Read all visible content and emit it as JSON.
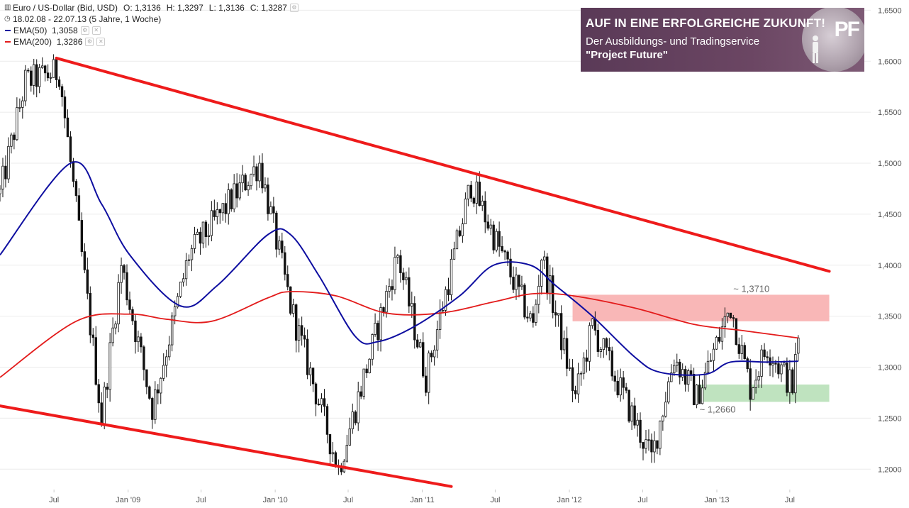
{
  "legend": {
    "instrument": "Euro / US-Dollar (Bid, USD)",
    "ohlc": {
      "open_label": "O:",
      "open": "1,3136",
      "high_label": "H:",
      "high": "1,3297",
      "low_label": "L:",
      "low": "1,3136",
      "close_label": "C:",
      "close": "1,3287"
    },
    "period": "18.02.08 - 22.07.13 (5 Jahre, 1 Woche)",
    "ema50": {
      "label": "EMA(50)",
      "value": "1,3058",
      "color": "#0d0da0"
    },
    "ema200": {
      "label": "EMA(200)",
      "value": "1,3286",
      "color": "#e31b1b"
    }
  },
  "banner": {
    "headline": "AUF IN EINE ERFOLGREICHE ZUKUNFT!",
    "line2": "Der Ausbildungs- und Tradingservice",
    "line3": "\"Project Future\"",
    "logo": "PF"
  },
  "chart_data": {
    "type": "candlestick",
    "title": "",
    "x_range": [
      "2008-02-18",
      "2013-07-22"
    ],
    "y_range": [
      1.18,
      1.66
    ],
    "y_ticks": [
      1.2,
      1.25,
      1.3,
      1.35,
      1.4,
      1.45,
      1.5,
      1.55,
      1.6,
      1.65
    ],
    "y_tick_labels": [
      "1,2000",
      "1,2500",
      "1,3000",
      "1,3500",
      "1,4000",
      "1,4500",
      "1,5000",
      "1,5500",
      "1,6000",
      "1,6500"
    ],
    "x_ticks": [
      {
        "date": "2008-07-01",
        "label": "Jul"
      },
      {
        "date": "2009-01-01",
        "label": "Jan '09"
      },
      {
        "date": "2009-07-01",
        "label": "Jul"
      },
      {
        "date": "2010-01-01",
        "label": "Jan '10"
      },
      {
        "date": "2010-07-01",
        "label": "Jul"
      },
      {
        "date": "2011-01-01",
        "label": "Jan '11"
      },
      {
        "date": "2011-07-01",
        "label": "Jul"
      },
      {
        "date": "2012-01-01",
        "label": "Jan '12"
      },
      {
        "date": "2012-07-01",
        "label": "Jul"
      },
      {
        "date": "2013-01-01",
        "label": "Jan '13"
      },
      {
        "date": "2013-07-01",
        "label": "Jul"
      }
    ],
    "price_path": [
      {
        "date": "2008-02-18",
        "value": 1.47
      },
      {
        "date": "2008-04-21",
        "value": 1.58
      },
      {
        "date": "2008-07-14",
        "value": 1.59
      },
      {
        "date": "2008-08-11",
        "value": 1.5
      },
      {
        "date": "2008-10-27",
        "value": 1.25
      },
      {
        "date": "2008-12-15",
        "value": 1.4
      },
      {
        "date": "2009-03-02",
        "value": 1.26
      },
      {
        "date": "2009-06-01",
        "value": 1.41
      },
      {
        "date": "2009-11-23",
        "value": 1.5
      },
      {
        "date": "2010-02-08",
        "value": 1.36
      },
      {
        "date": "2010-06-07",
        "value": 1.2
      },
      {
        "date": "2010-11-01",
        "value": 1.41
      },
      {
        "date": "2011-01-10",
        "value": 1.29
      },
      {
        "date": "2011-05-02",
        "value": 1.48
      },
      {
        "date": "2011-10-03",
        "value": 1.34
      },
      {
        "date": "2011-10-24",
        "value": 1.41
      },
      {
        "date": "2012-01-16",
        "value": 1.27
      },
      {
        "date": "2012-02-27",
        "value": 1.34
      },
      {
        "date": "2012-07-23",
        "value": 1.21
      },
      {
        "date": "2012-09-17",
        "value": 1.31
      },
      {
        "date": "2012-11-12",
        "value": 1.27
      },
      {
        "date": "2013-02-04",
        "value": 1.36
      },
      {
        "date": "2013-03-25",
        "value": 1.28
      },
      {
        "date": "2013-05-06",
        "value": 1.32
      },
      {
        "date": "2013-07-08",
        "value": 1.28
      },
      {
        "date": "2013-07-22",
        "value": 1.3287
      }
    ],
    "ema50_path": [
      {
        "date": "2008-02-18",
        "value": 1.41
      },
      {
        "date": "2008-08-11",
        "value": 1.5
      },
      {
        "date": "2008-10-27",
        "value": 1.46
      },
      {
        "date": "2009-01-05",
        "value": 1.41
      },
      {
        "date": "2009-05-11",
        "value": 1.36
      },
      {
        "date": "2009-08-10",
        "value": 1.38
      },
      {
        "date": "2009-12-14",
        "value": 1.43
      },
      {
        "date": "2010-02-08",
        "value": 1.43
      },
      {
        "date": "2010-04-19",
        "value": 1.39
      },
      {
        "date": "2010-07-19",
        "value": 1.33
      },
      {
        "date": "2010-09-13",
        "value": 1.325
      },
      {
        "date": "2010-12-13",
        "value": 1.34
      },
      {
        "date": "2011-04-04",
        "value": 1.37
      },
      {
        "date": "2011-06-27",
        "value": 1.4
      },
      {
        "date": "2011-09-26",
        "value": 1.4
      },
      {
        "date": "2011-11-28",
        "value": 1.38
      },
      {
        "date": "2012-02-27",
        "value": 1.35
      },
      {
        "date": "2012-06-11",
        "value": 1.31
      },
      {
        "date": "2012-08-13",
        "value": 1.295
      },
      {
        "date": "2012-12-03",
        "value": 1.293
      },
      {
        "date": "2013-02-04",
        "value": 1.305
      },
      {
        "date": "2013-05-06",
        "value": 1.305
      },
      {
        "date": "2013-07-22",
        "value": 1.3058
      }
    ],
    "ema200_path": [
      {
        "date": "2008-02-18",
        "value": 1.29
      },
      {
        "date": "2008-08-25",
        "value": 1.345
      },
      {
        "date": "2009-01-05",
        "value": 1.352
      },
      {
        "date": "2009-04-06",
        "value": 1.347
      },
      {
        "date": "2009-07-27",
        "value": 1.345
      },
      {
        "date": "2009-12-14",
        "value": 1.368
      },
      {
        "date": "2010-02-08",
        "value": 1.374
      },
      {
        "date": "2010-05-31",
        "value": 1.37
      },
      {
        "date": "2010-10-04",
        "value": 1.353
      },
      {
        "date": "2011-02-14",
        "value": 1.353
      },
      {
        "date": "2011-06-27",
        "value": 1.364
      },
      {
        "date": "2011-10-03",
        "value": 1.372
      },
      {
        "date": "2012-01-09",
        "value": 1.37
      },
      {
        "date": "2012-06-11",
        "value": 1.358
      },
      {
        "date": "2012-11-05",
        "value": 1.342
      },
      {
        "date": "2013-03-04",
        "value": 1.336
      },
      {
        "date": "2013-07-22",
        "value": 1.3286
      }
    ],
    "trend_lines": [
      {
        "name": "upper channel",
        "color": "#ee1b1b",
        "start": {
          "date": "2008-07-07",
          "value": 1.603
        },
        "end": {
          "date": "2013-10-07",
          "value": 1.394
        }
      },
      {
        "name": "lower channel",
        "color": "#ee1b1b",
        "start": {
          "date": "2008-02-18",
          "value": 1.262
        },
        "end": {
          "date": "2011-03-14",
          "value": 1.183
        }
      }
    ],
    "zones": [
      {
        "name": "resistance",
        "color": "#f9b7b7",
        "from_date": "2012-01-09",
        "to_date": "2013-10-07",
        "low": 1.345,
        "high": 1.371,
        "label": "~ 1,3710"
      },
      {
        "name": "support",
        "color": "#bfe3bf",
        "from_date": "2012-11-12",
        "to_date": "2013-10-07",
        "low": 1.266,
        "high": 1.283,
        "label": "~ 1,2660"
      }
    ]
  }
}
